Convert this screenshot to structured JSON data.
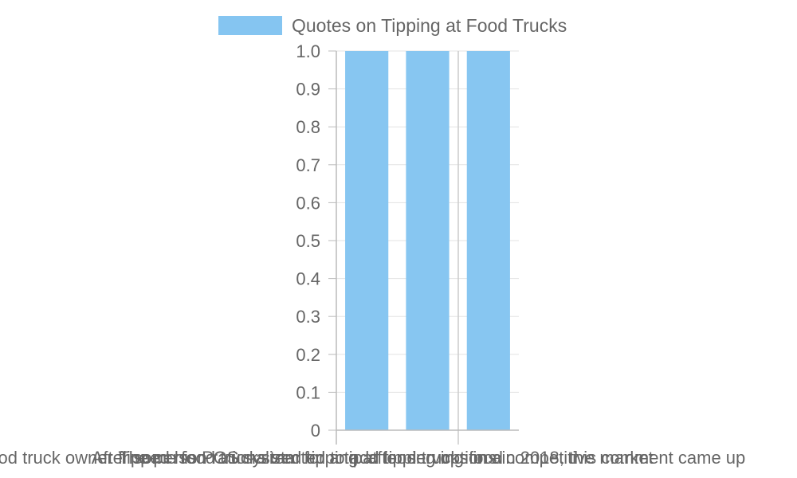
{
  "chart_data": {
    "type": "bar",
    "legend": "Quotes on Tipping at Food Trucks",
    "legend_position": "top",
    "grid": true,
    "color": "#85c5f1",
    "categories": [
      "A customer reacted after a food truck owner flipped his POS system for a tip after serving food",
      "The person rationalized tipping at food trucks in a competitive market",
      "After some food trucks started to add tipping options in 2018, this comment came up"
    ],
    "values": [
      1,
      1,
      1
    ],
    "ylim": [
      0,
      1
    ],
    "yticks": [
      "0",
      "0.1",
      "0.2",
      "0.3",
      "0.4",
      "0.5",
      "0.6",
      "0.7",
      "0.8",
      "0.9",
      "1.0"
    ]
  }
}
